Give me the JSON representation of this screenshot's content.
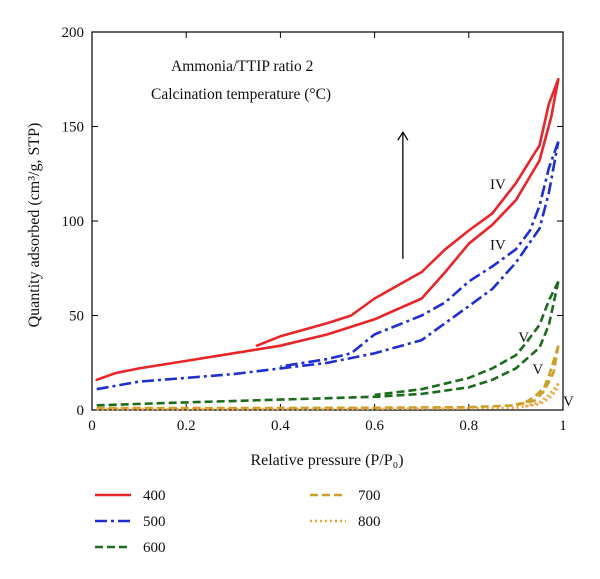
{
  "chart_data": {
    "type": "line",
    "title": "",
    "xlabel": "Relative pressure (P/P₀)",
    "ylabel": "Quantity adsorbed (cm³/g, STP)",
    "xlim": [
      0,
      1
    ],
    "ylim": [
      0,
      200
    ],
    "xticks": [
      "0",
      "0.2",
      "0.4",
      "0.6",
      "0.8",
      "1"
    ],
    "yticks": [
      "0",
      "50",
      "100",
      "150",
      "200"
    ],
    "grid": false,
    "legend_position": "below-plot",
    "annotations": {
      "line1": "Ammonia/TTIP ratio 2",
      "line2": "Calcination temperature (°C)",
      "arrow": "increasing upward",
      "arrow_x": 0.66,
      "arrow_y": [
        80,
        147
      ]
    },
    "isotherm_labels": [
      {
        "text": "IV",
        "x": 0.845,
        "y": 117
      },
      {
        "text": "IV",
        "x": 0.845,
        "y": 85
      },
      {
        "text": "V",
        "x": 0.905,
        "y": 36
      },
      {
        "text": "V",
        "x": 0.935,
        "y": 19
      },
      {
        "text": "V",
        "x": 1.0,
        "y": 2
      }
    ],
    "series": [
      {
        "name": "400",
        "color": "#e8262a",
        "dash": "solid",
        "adsorption": [
          [
            0.01,
            16
          ],
          [
            0.05,
            19.5
          ],
          [
            0.1,
            22
          ],
          [
            0.2,
            26
          ],
          [
            0.3,
            30
          ],
          [
            0.4,
            34
          ],
          [
            0.5,
            40
          ],
          [
            0.6,
            48
          ],
          [
            0.7,
            59
          ],
          [
            0.75,
            73
          ],
          [
            0.8,
            88
          ],
          [
            0.85,
            98
          ],
          [
            0.9,
            111
          ],
          [
            0.95,
            132
          ],
          [
            0.975,
            155
          ],
          [
            0.99,
            175
          ]
        ],
        "desorption": [
          [
            0.99,
            175
          ],
          [
            0.97,
            162
          ],
          [
            0.95,
            140
          ],
          [
            0.92,
            128
          ],
          [
            0.9,
            120
          ],
          [
            0.85,
            104
          ],
          [
            0.8,
            95
          ],
          [
            0.75,
            85
          ],
          [
            0.7,
            73
          ],
          [
            0.6,
            59
          ],
          [
            0.55,
            50
          ],
          [
            0.5,
            46
          ],
          [
            0.4,
            39
          ],
          [
            0.35,
            34
          ]
        ]
      },
      {
        "name": "500",
        "color": "#1f2fd1",
        "dash": "dashdot",
        "adsorption": [
          [
            0.01,
            11
          ],
          [
            0.1,
            15
          ],
          [
            0.2,
            17
          ],
          [
            0.3,
            19
          ],
          [
            0.4,
            22
          ],
          [
            0.5,
            25
          ],
          [
            0.6,
            30
          ],
          [
            0.7,
            37
          ],
          [
            0.8,
            55
          ],
          [
            0.85,
            64
          ],
          [
            0.9,
            78
          ],
          [
            0.95,
            96
          ],
          [
            0.97,
            115
          ],
          [
            0.99,
            142
          ]
        ],
        "desorption": [
          [
            0.99,
            142
          ],
          [
            0.97,
            128
          ],
          [
            0.95,
            108
          ],
          [
            0.93,
            95
          ],
          [
            0.9,
            85
          ],
          [
            0.85,
            76
          ],
          [
            0.8,
            68
          ],
          [
            0.75,
            57
          ],
          [
            0.7,
            50
          ],
          [
            0.6,
            40
          ],
          [
            0.55,
            30
          ],
          [
            0.5,
            27
          ],
          [
            0.4,
            23
          ]
        ]
      },
      {
        "name": "600",
        "color": "#1d6b1d",
        "dash": "dashed",
        "adsorption": [
          [
            0.01,
            2.5
          ],
          [
            0.2,
            4
          ],
          [
            0.4,
            5.5
          ],
          [
            0.6,
            7
          ],
          [
            0.7,
            8.5
          ],
          [
            0.8,
            12
          ],
          [
            0.85,
            16
          ],
          [
            0.9,
            22
          ],
          [
            0.95,
            33
          ],
          [
            0.97,
            45
          ],
          [
            0.99,
            68
          ]
        ],
        "desorption": [
          [
            0.99,
            68
          ],
          [
            0.97,
            58
          ],
          [
            0.95,
            45
          ],
          [
            0.92,
            35
          ],
          [
            0.9,
            29
          ],
          [
            0.85,
            22
          ],
          [
            0.8,
            17
          ],
          [
            0.7,
            11
          ],
          [
            0.6,
            8
          ]
        ]
      },
      {
        "name": "700",
        "color": "#c9a02a",
        "dash": "dashed",
        "adsorption": [
          [
            0.01,
            1
          ],
          [
            0.3,
            1
          ],
          [
            0.6,
            1.2
          ],
          [
            0.8,
            1.5
          ],
          [
            0.9,
            2.5
          ],
          [
            0.94,
            5
          ],
          [
            0.96,
            10
          ],
          [
            0.98,
            20
          ],
          [
            0.99,
            34
          ]
        ],
        "desorption": [
          [
            0.99,
            34
          ],
          [
            0.98,
            26
          ],
          [
            0.97,
            18
          ],
          [
            0.96,
            12
          ],
          [
            0.94,
            7
          ],
          [
            0.92,
            4
          ],
          [
            0.9,
            3
          ]
        ]
      },
      {
        "name": "800",
        "color": "#f0a236",
        "dash": "dotted",
        "adsorption": [
          [
            0.01,
            0.5
          ],
          [
            0.4,
            0.5
          ],
          [
            0.8,
            0.8
          ],
          [
            0.9,
            1.2
          ],
          [
            0.95,
            3
          ],
          [
            0.97,
            6
          ],
          [
            0.985,
            10
          ],
          [
            0.99,
            14
          ]
        ],
        "desorption": [
          [
            0.99,
            14
          ],
          [
            0.98,
            11
          ],
          [
            0.97,
            8
          ],
          [
            0.95,
            4
          ],
          [
            0.92,
            2
          ]
        ]
      }
    ]
  }
}
